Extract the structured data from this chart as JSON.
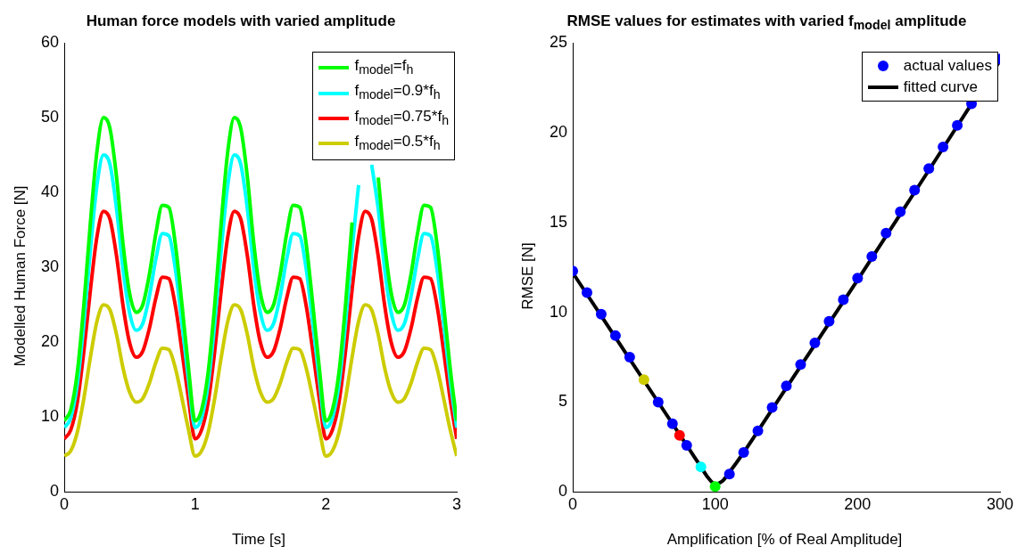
{
  "chart_data": [
    {
      "type": "line",
      "title": "Human force models with varied amplitude",
      "xlabel": "Time [s]",
      "ylabel": "Modelled Human Force [N]",
      "x": [
        0,
        0.05,
        0.1,
        0.15,
        0.2,
        0.25,
        0.3,
        0.35,
        0.4,
        0.45,
        0.5,
        0.55,
        0.6,
        0.65,
        0.7,
        0.75,
        0.8,
        0.85,
        0.9,
        0.95,
        1,
        1.05,
        1.1,
        1.15,
        1.2,
        1.25,
        1.3,
        1.35,
        1.4,
        1.45,
        1.5,
        1.55,
        1.6,
        1.65,
        1.7,
        1.75,
        1.8,
        1.85,
        1.9,
        1.95,
        2,
        2.05,
        2.1,
        2.15,
        2.2,
        2.25,
        2.3,
        2.35,
        2.4,
        2.45,
        2.5,
        2.55,
        2.6,
        2.65,
        2.7,
        2.75,
        2.8,
        2.85,
        2.9,
        2.95,
        3
      ],
      "series": [
        {
          "name": "f$_{model}$=f$_{h}$",
          "color": "#00ff00",
          "values": [
            9.5,
            11,
            16,
            25,
            36,
            45.5,
            50,
            48.5,
            42,
            33,
            26.5,
            24,
            25,
            29,
            34.5,
            38.3,
            38,
            33,
            25,
            16.5,
            9.5,
            11,
            16,
            25,
            36,
            45.5,
            50,
            48.5,
            42,
            33,
            26.5,
            24,
            25,
            29,
            34.5,
            38.3,
            38,
            33,
            25,
            16.5,
            9.5,
            11,
            16,
            25,
            36,
            null,
            null,
            null,
            42,
            33,
            26.5,
            24,
            25,
            29,
            34.5,
            38.3,
            38,
            33,
            25,
            16.5,
            9.5
          ]
        },
        {
          "name": "f$_{model}$=0.9*f$_{h}$",
          "color": "#00ffff",
          "values": [
            8.6,
            9.9,
            14.4,
            22.5,
            32.4,
            41,
            45,
            43.7,
            37.8,
            29.7,
            23.9,
            21.6,
            22.5,
            26.1,
            31.1,
            34.5,
            34.2,
            29.7,
            22.5,
            14.9,
            8.6,
            9.9,
            14.4,
            22.5,
            32.4,
            41,
            45,
            43.7,
            37.8,
            29.7,
            23.9,
            21.6,
            22.5,
            26.1,
            31.1,
            34.5,
            34.2,
            29.7,
            22.5,
            14.9,
            8.6,
            9.9,
            14.4,
            22.5,
            32.4,
            41,
            null,
            43.7,
            37.8,
            29.7,
            23.9,
            21.6,
            22.5,
            26.1,
            31.1,
            34.5,
            34.2,
            29.7,
            22.5,
            14.9,
            8.6
          ]
        },
        {
          "name": "f$_{model}$=0.75*f$_{h}$",
          "color": "#ff0000",
          "values": [
            7.1,
            8.3,
            12,
            18.8,
            27,
            34.1,
            37.5,
            36.4,
            31.5,
            24.8,
            19.9,
            18,
            18.8,
            21.8,
            25.9,
            28.7,
            28.5,
            24.8,
            18.8,
            12.4,
            7.1,
            8.3,
            12,
            18.8,
            27,
            34.1,
            37.5,
            36.4,
            31.5,
            24.8,
            19.9,
            18,
            18.8,
            21.8,
            25.9,
            28.7,
            28.5,
            24.8,
            18.8,
            12.4,
            7.1,
            8.3,
            12,
            18.8,
            27,
            34.1,
            37.5,
            36.4,
            31.5,
            24.8,
            19.9,
            18,
            18.8,
            21.8,
            25.9,
            28.7,
            28.5,
            24.8,
            18.8,
            12.4,
            7.1
          ]
        },
        {
          "name": "f$_{model}$=0.5*f$_{h}$",
          "color": "#cccc00",
          "values": [
            4.8,
            5.5,
            8,
            12.5,
            18,
            22.8,
            25,
            24.3,
            21,
            16.5,
            13.3,
            12,
            12.5,
            14.5,
            17.3,
            19.2,
            19,
            16.5,
            12.5,
            8.3,
            4.8,
            5.5,
            8,
            12.5,
            18,
            22.8,
            25,
            24.3,
            21,
            16.5,
            13.3,
            12,
            12.5,
            14.5,
            17.3,
            19.2,
            19,
            16.5,
            12.5,
            8.3,
            4.8,
            5.5,
            8,
            12.5,
            18,
            22.8,
            25,
            24.3,
            21,
            16.5,
            13.3,
            12,
            12.5,
            14.5,
            17.3,
            19.2,
            19,
            16.5,
            12.5,
            8.3,
            4.8
          ]
        }
      ],
      "xlim": [
        0,
        3
      ],
      "xticks": [
        0,
        1,
        2,
        3
      ],
      "ylim": [
        0,
        60
      ],
      "yticks": [
        0,
        10,
        20,
        30,
        40,
        50,
        60
      ],
      "legend": "top right",
      "marker": "none",
      "line_style": "solid"
    },
    {
      "type": "scatter",
      "title": "RMSE values for estimates with varied f$_{model}$ amplitude",
      "xlabel": "Amplification [% of Real Amplitude]",
      "ylabel": "RMSE [N]",
      "series": [
        {
          "name": "actual values",
          "color": "#0000ff",
          "marker": "circle",
          "x": [
            0,
            10,
            20,
            30,
            40,
            50,
            60,
            70,
            80,
            90,
            100,
            110,
            120,
            130,
            140,
            150,
            160,
            170,
            180,
            190,
            200,
            210,
            220,
            230,
            240,
            250,
            260,
            270,
            280,
            290,
            300
          ],
          "values": [
            12.3,
            11.1,
            9.9,
            8.7,
            7.5,
            null,
            5.0,
            3.8,
            2.6,
            null,
            null,
            1.0,
            2.2,
            3.4,
            4.7,
            5.9,
            7.1,
            8.3,
            9.5,
            10.7,
            11.9,
            13.1,
            14.4,
            15.6,
            16.8,
            18.0,
            19.2,
            20.4,
            21.6,
            null,
            24.1
          ]
        },
        {
          "type": "line",
          "name": "fitted curve",
          "color": "#000000",
          "marker": "none",
          "x": [
            0,
            20,
            40,
            60,
            80,
            90,
            95,
            100,
            105,
            110,
            120,
            140,
            160,
            200,
            250,
            280,
            300
          ],
          "values": [
            12.2,
            9.8,
            7.4,
            5.0,
            2.6,
            1.4,
            0.8,
            0.45,
            0.6,
            1.1,
            2.2,
            4.6,
            7.0,
            11.8,
            17.9,
            21.6,
            24.0
          ]
        },
        {
          "marker": "circle",
          "x": [
            50,
            75,
            90,
            100
          ],
          "values": [
            6.25,
            3.15,
            1.4,
            0.3
          ],
          "colors": [
            "#cccc00",
            "#ff0000",
            "#00ffff",
            "#00ff00"
          ]
        }
      ],
      "xlim": [
        0,
        300
      ],
      "xticks": [
        0,
        100,
        200,
        300
      ],
      "ylim": [
        0,
        25
      ],
      "yticks": [
        0,
        5,
        10,
        15,
        20,
        25
      ],
      "legend": "top right",
      "line_style": "solid"
    }
  ]
}
